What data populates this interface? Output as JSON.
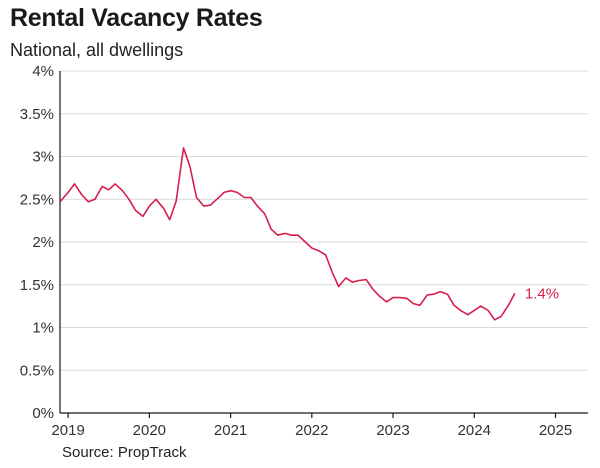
{
  "header": {
    "title": "Rental Vacancy Rates",
    "subtitle": "National, all dwellings"
  },
  "footer": {
    "source": "Source: PropTrack"
  },
  "colors": {
    "line": "#d6204c",
    "grid": "#d9d9d9",
    "axis": "#1a1a1a"
  },
  "chart_data": {
    "type": "line",
    "title": "Rental Vacancy Rates",
    "subtitle": "National, all dwellings",
    "xlabel": "",
    "ylabel": "",
    "x_ticks": [
      "2019",
      "2020",
      "2021",
      "2022",
      "2023",
      "2024",
      "2025"
    ],
    "y_ticks": [
      "0%",
      "0.5%",
      "1%",
      "1.5%",
      "2%",
      "2.5%",
      "3%",
      "3.5%",
      "4%"
    ],
    "xlim": [
      2018.9,
      2025.4
    ],
    "ylim": [
      0,
      4
    ],
    "grid": true,
    "end_label": "1.4%",
    "series": [
      {
        "x": [
          2018.9,
          2019.0,
          2019.08,
          2019.17,
          2019.25,
          2019.33,
          2019.42,
          2019.5,
          2019.58,
          2019.67,
          2019.75,
          2019.83,
          2019.92,
          2020.0,
          2020.08,
          2020.17,
          2020.25,
          2020.33,
          2020.42,
          2020.5,
          2020.58,
          2020.67,
          2020.75,
          2020.83,
          2020.92,
          2021.0,
          2021.08,
          2021.17,
          2021.25,
          2021.33,
          2021.42,
          2021.5,
          2021.58,
          2021.67,
          2021.75,
          2021.83,
          2021.92,
          2022.0,
          2022.08,
          2022.17,
          2022.25,
          2022.33,
          2022.42,
          2022.5,
          2022.58,
          2022.67,
          2022.75,
          2022.83,
          2022.92,
          2023.0,
          2023.08,
          2023.17,
          2023.25,
          2023.33,
          2023.42,
          2023.5,
          2023.58,
          2023.67,
          2023.75,
          2023.83,
          2023.92,
          2024.0,
          2024.08,
          2024.17,
          2024.25,
          2024.33,
          2024.42,
          2024.5
        ],
        "values": [
          2.47,
          2.58,
          2.68,
          2.55,
          2.47,
          2.5,
          2.65,
          2.61,
          2.68,
          2.6,
          2.5,
          2.37,
          2.3,
          2.42,
          2.5,
          2.4,
          2.26,
          2.48,
          3.1,
          2.88,
          2.52,
          2.42,
          2.43,
          2.5,
          2.58,
          2.6,
          2.58,
          2.52,
          2.52,
          2.42,
          2.33,
          2.15,
          2.08,
          2.1,
          2.08,
          2.08,
          2.0,
          1.93,
          1.9,
          1.85,
          1.65,
          1.48,
          1.58,
          1.53,
          1.55,
          1.56,
          1.45,
          1.37,
          1.3,
          1.35,
          1.35,
          1.34,
          1.28,
          1.26,
          1.38,
          1.39,
          1.42,
          1.39,
          1.26,
          1.2,
          1.15,
          1.2,
          1.25,
          1.2,
          1.09,
          1.13,
          1.26,
          1.4
        ]
      }
    ]
  }
}
